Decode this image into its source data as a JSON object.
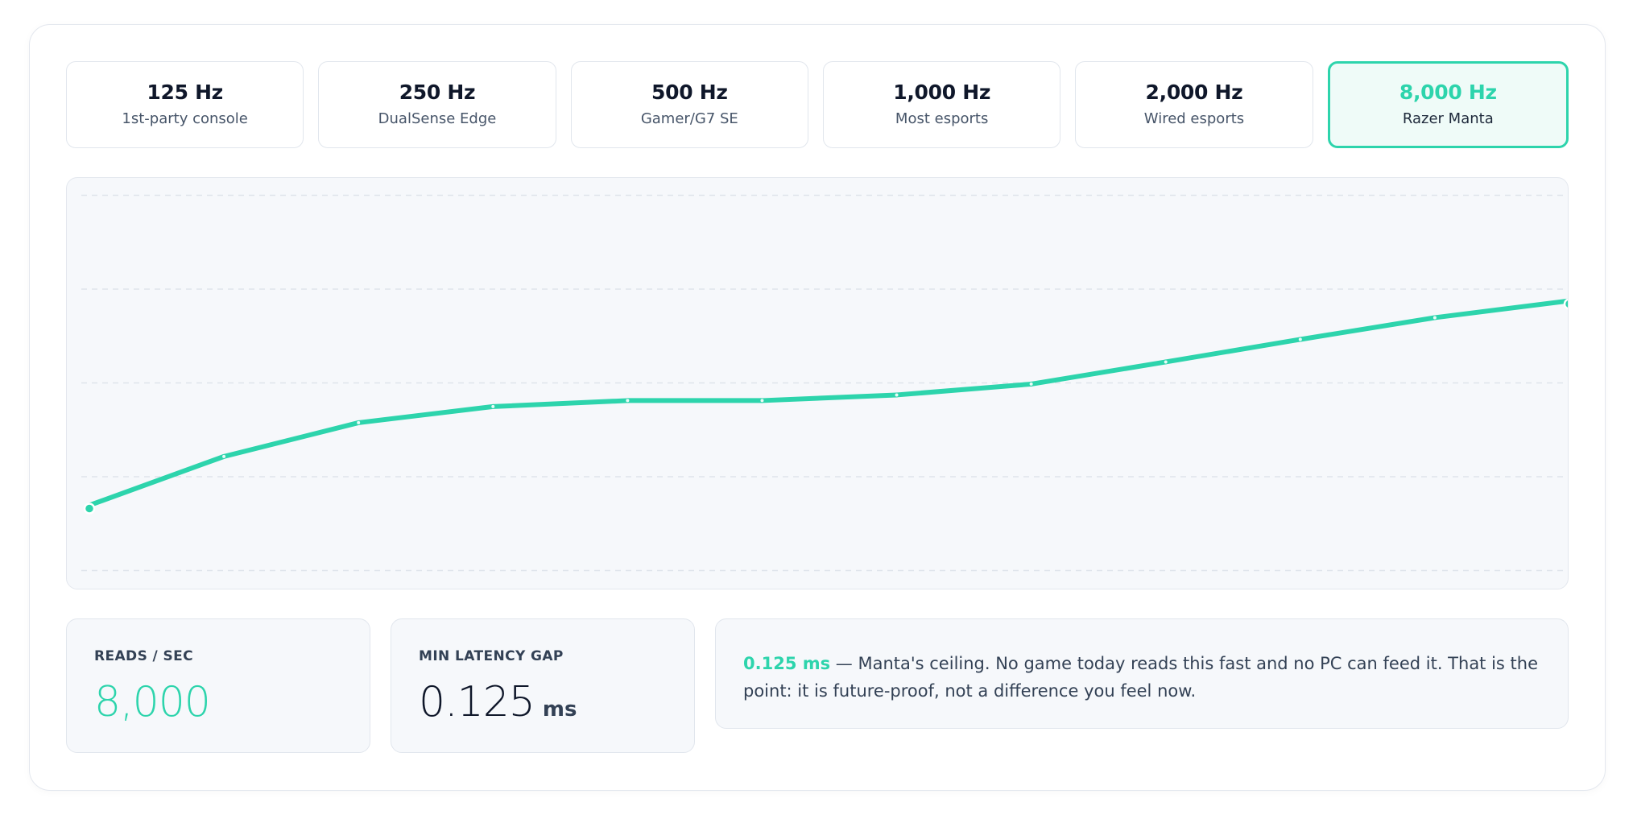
{
  "rates": [
    {
      "hz": "125 Hz",
      "desc": "1st-party console"
    },
    {
      "hz": "250 Hz",
      "desc": "DualSense Edge"
    },
    {
      "hz": "500 Hz",
      "desc": "Gamer/G7 SE"
    },
    {
      "hz": "1,000 Hz",
      "desc": "Most esports"
    },
    {
      "hz": "2,000 Hz",
      "desc": "Wired esports"
    },
    {
      "hz": "8,000 Hz",
      "desc": "Razer Manta"
    }
  ],
  "selected_rate": "8,000 Hz",
  "colors": {
    "accent": "#2dd4ac",
    "text": "#0f172a",
    "muted": "#475569",
    "grid": "#e3e7ee"
  },
  "chart_data": {
    "type": "line",
    "x": [
      0,
      1,
      2,
      3,
      4,
      5,
      6,
      7,
      8,
      9,
      10,
      11
    ],
    "series": [
      {
        "values": [
          17.5,
          30.5,
          39.5,
          43.8,
          45.4,
          45.4,
          46.9,
          49.8,
          55.7,
          61.7,
          67.5,
          72.0
        ]
      }
    ],
    "ylim": [
      0,
      100
    ],
    "grid": true,
    "xlabel": "",
    "ylabel": ""
  },
  "stats": {
    "reads_label": "READS / SEC",
    "reads_value": "8,000",
    "latency_label": "MIN LATENCY GAP",
    "latency_value": "0.125",
    "latency_unit": "ms"
  },
  "note": {
    "accent": "0.125 ms",
    "text": " — Manta's ceiling. No game today reads this fast and no PC can feed it. That is the point: it is future-proof, not a difference you feel now."
  }
}
